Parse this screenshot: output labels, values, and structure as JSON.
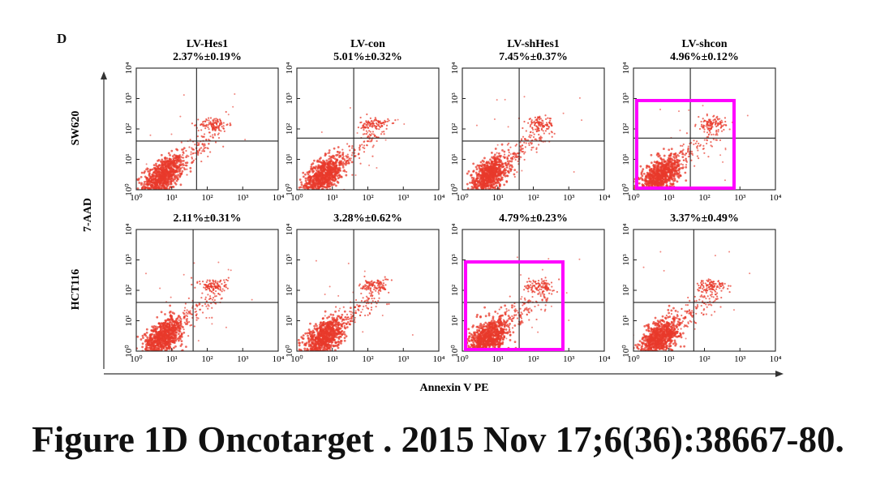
{
  "figure": {
    "panel_letter": "D",
    "caption": "Figure 1D Oncotarget . 2015 Nov 17;6(36):38667-80.",
    "xlabel": "Annexin V PE",
    "ylabel": "7-AAD",
    "highlight_color": "#ff00ff",
    "point_color": "#e8392b"
  },
  "chart_data": {
    "type": "scatter",
    "xlabel": "Annexin V PE",
    "ylabel": "7-AAD",
    "xscale": "log",
    "yscale": "log",
    "xlim": [
      1,
      10000
    ],
    "ylim": [
      1,
      10000
    ],
    "x_tick_labels": [
      "10⁰",
      "10¹",
      "10²",
      "10³",
      "10⁴"
    ],
    "y_tick_labels": [
      "10⁰",
      "10¹",
      "10²",
      "10³",
      "10⁴"
    ],
    "columns": [
      "LV-Hes1",
      "LV-con",
      "LV-shHes1",
      "LV-shcon"
    ],
    "rows": [
      "SW620",
      "HCT116"
    ],
    "panels": [
      {
        "row": "SW620",
        "column": "LV-Hes1",
        "value": "2.37%±0.19%",
        "gate": [
          50,
          40
        ],
        "highlighted": false
      },
      {
        "row": "SW620",
        "column": "LV-con",
        "value": "5.01%±0.32%",
        "gate": [
          40,
          50
        ],
        "highlighted": false
      },
      {
        "row": "SW620",
        "column": "LV-shHes1",
        "value": "7.45%±0.37%",
        "gate": [
          40,
          40
        ],
        "highlighted": false
      },
      {
        "row": "SW620",
        "column": "LV-shcon",
        "value": "4.96%±0.12%",
        "gate": [
          40,
          50
        ],
        "highlighted": true
      },
      {
        "row": "HCT116",
        "column": "LV-Hes1",
        "value": "2.11%±0.31%",
        "gate": [
          40,
          40
        ],
        "highlighted": false
      },
      {
        "row": "HCT116",
        "column": "LV-con",
        "value": "3.28%±0.62%",
        "gate": [
          40,
          40
        ],
        "highlighted": false
      },
      {
        "row": "HCT116",
        "column": "LV-shHes1",
        "value": "4.79%±0.23%",
        "gate": [
          40,
          40
        ],
        "highlighted": true
      },
      {
        "row": "HCT116",
        "column": "LV-shcon",
        "value": "3.37%±0.49%",
        "gate": [
          50,
          40
        ],
        "highlighted": false
      }
    ]
  }
}
